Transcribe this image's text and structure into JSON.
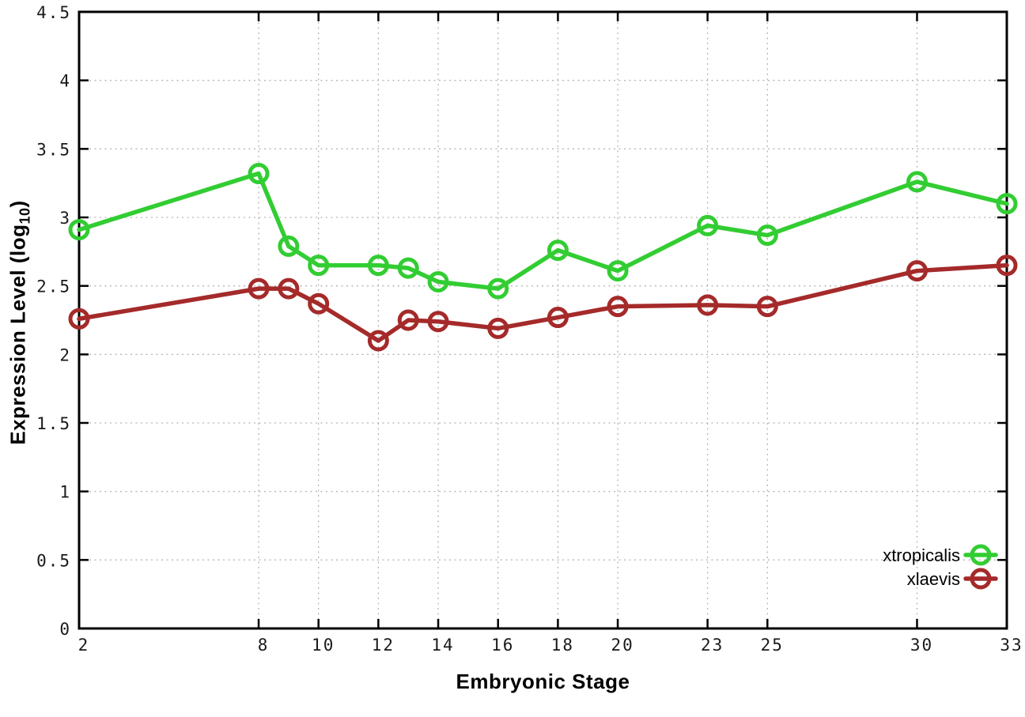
{
  "chart_data": {
    "type": "line",
    "xlabel": "Embryonic Stage",
    "ylabel": "Expression Level (log10)",
    "ylabel_parts": {
      "prefix": "Expression Level (log",
      "subscript": "10",
      "suffix": ")"
    },
    "xlim": [
      2,
      33
    ],
    "ylim": [
      0,
      4.5
    ],
    "x_ticks": [
      2,
      8,
      10,
      12,
      14,
      16,
      18,
      20,
      23,
      25,
      30,
      33
    ],
    "y_ticks": [
      0,
      0.5,
      1,
      1.5,
      2,
      2.5,
      3,
      3.5,
      4,
      4.5
    ],
    "grid": true,
    "legend_position": "bottom-right-inside",
    "x": [
      2,
      8,
      9,
      10,
      12,
      13,
      14,
      16,
      18,
      20,
      23,
      25,
      30,
      33
    ],
    "series": [
      {
        "name": "xtropicalis",
        "color": "#32cd32",
        "marker": "open-circle",
        "values": [
          2.91,
          3.32,
          2.79,
          2.65,
          2.65,
          2.63,
          2.53,
          2.48,
          2.76,
          2.61,
          2.94,
          2.87,
          3.26,
          3.1
        ]
      },
      {
        "name": "xlaevis",
        "color": "#a52a2a",
        "marker": "open-circle",
        "values": [
          2.26,
          2.48,
          2.48,
          2.37,
          2.1,
          2.25,
          2.24,
          2.19,
          2.27,
          2.35,
          2.36,
          2.35,
          2.61,
          2.65
        ]
      }
    ],
    "colors": {
      "grid": "#b5b5b5",
      "axis": "#000000",
      "background": "#ffffff"
    }
  }
}
